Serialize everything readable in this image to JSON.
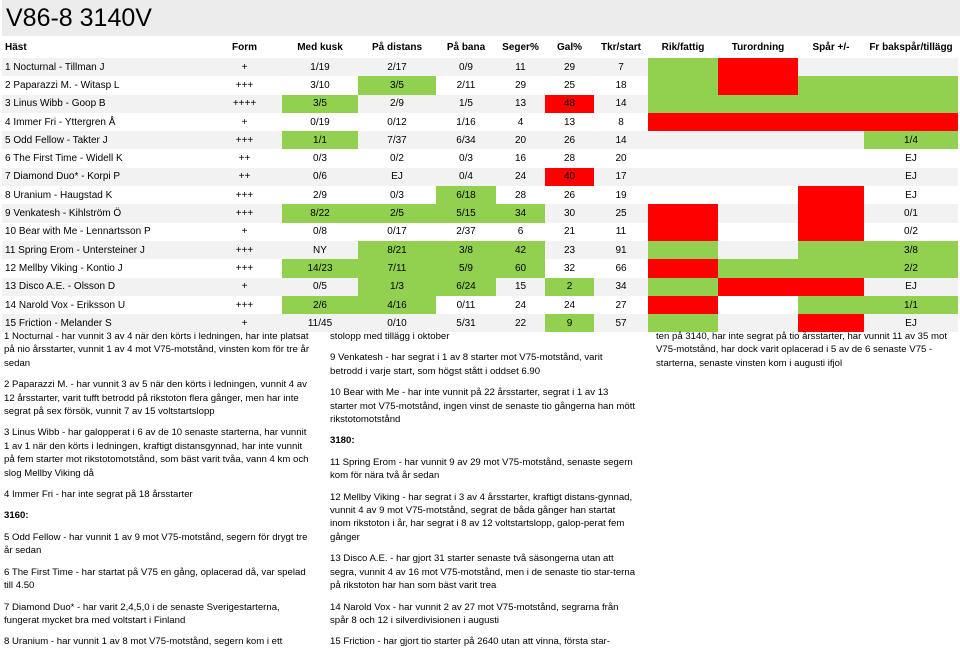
{
  "title": "V86-8    3140V",
  "headers": [
    "Häst",
    "Form",
    "Med kusk",
    "På distans",
    "På bana",
    "Seger%",
    "Gal%",
    "Tkr/start",
    "Rik/fattig",
    "Turordning",
    "Spår +/-",
    "Fr bakspår/tillägg"
  ],
  "rows": [
    {
      "cells": [
        "1 Nocturnal - Tillman J",
        "+",
        "1/19",
        "2/17",
        "0/9",
        "11",
        "29",
        "7",
        "",
        "",
        "",
        ""
      ],
      "hl": [
        null,
        null,
        null,
        null,
        null,
        null,
        null,
        null,
        "g",
        "r",
        "",
        ""
      ]
    },
    {
      "cells": [
        "2 Paparazzi M. - Witasp L",
        "+++",
        "3/10",
        "3/5",
        "2/11",
        "29",
        "25",
        "18",
        "",
        "",
        "",
        ""
      ],
      "hl": [
        null,
        null,
        null,
        "g",
        null,
        null,
        null,
        null,
        "g",
        "r",
        "g",
        "g"
      ]
    },
    {
      "cells": [
        "3 Linus Wibb - Goop B",
        "++++",
        "3/5",
        "2/9",
        "1/5",
        "13",
        "48",
        "14",
        "",
        "",
        "",
        ""
      ],
      "hl": [
        null,
        null,
        "g",
        null,
        null,
        null,
        "r",
        null,
        "g",
        "g",
        "g",
        "g"
      ]
    },
    {
      "cells": [
        "4 Immer Fri - Yttergren Å",
        "+",
        "0/19",
        "0/12",
        "1/16",
        "4",
        "13",
        "8",
        "",
        "",
        "",
        ""
      ],
      "hl": [
        null,
        null,
        null,
        null,
        null,
        null,
        null,
        null,
        "r",
        "r",
        "r",
        "r"
      ]
    },
    {
      "cells": [
        "5 Odd Fellow - Takter J",
        "+++",
        "1/1",
        "7/37",
        "6/34",
        "20",
        "26",
        "14",
        "",
        "",
        "",
        "1/4"
      ],
      "hl": [
        null,
        null,
        "g",
        null,
        null,
        null,
        null,
        null,
        null,
        null,
        null,
        "g"
      ]
    },
    {
      "cells": [
        "6 The First Time - Widell K",
        "++",
        "0/3",
        "0/2",
        "0/3",
        "16",
        "28",
        "20",
        "",
        "",
        "",
        "EJ"
      ],
      "hl": [
        null,
        null,
        null,
        null,
        null,
        null,
        null,
        null,
        null,
        null,
        null,
        null
      ]
    },
    {
      "cells": [
        "7 Diamond Duo* - Korpi P",
        "++",
        "0/6",
        "EJ",
        "0/4",
        "24",
        "40",
        "17",
        "",
        "",
        "",
        "EJ"
      ],
      "hl": [
        null,
        null,
        null,
        null,
        null,
        null,
        "r",
        null,
        null,
        null,
        null,
        null
      ]
    },
    {
      "cells": [
        "8 Uranium - Haugstad K",
        "+++",
        "2/9",
        "0/3",
        "6/18",
        "28",
        "26",
        "19",
        "",
        "",
        "",
        "EJ"
      ],
      "hl": [
        null,
        null,
        null,
        null,
        "g",
        null,
        null,
        null,
        null,
        null,
        "r",
        null
      ]
    },
    {
      "cells": [
        "9 Venkatesh - Kihlström Ö",
        "+++",
        "8/22",
        "2/5",
        "5/15",
        "34",
        "30",
        "25",
        "",
        "",
        "",
        "0/1"
      ],
      "hl": [
        null,
        null,
        "g",
        "g",
        "g",
        "g",
        null,
        null,
        "r",
        null,
        "r",
        null
      ]
    },
    {
      "cells": [
        "10 Bear with Me - Lennartsson P",
        "+",
        "0/8",
        "0/17",
        "2/37",
        "6",
        "21",
        "11",
        "",
        "",
        "",
        "0/2"
      ],
      "hl": [
        null,
        null,
        null,
        null,
        null,
        null,
        null,
        null,
        "r",
        null,
        "r",
        null
      ]
    },
    {
      "cells": [
        "11 Spring Erom - Untersteiner J",
        "+++",
        "NY",
        "8/21",
        "3/8",
        "42",
        "23",
        "91",
        "",
        "",
        "",
        "3/8"
      ],
      "hl": [
        null,
        null,
        null,
        "g",
        "g",
        "g",
        null,
        null,
        "g",
        null,
        "g",
        "g"
      ]
    },
    {
      "cells": [
        "12 Mellby Viking - Kontio J",
        "+++",
        "14/23",
        "7/11",
        "5/9",
        "60",
        "32",
        "66",
        "",
        "",
        "",
        "2/2"
      ],
      "hl": [
        null,
        null,
        "g",
        "g",
        "g",
        "g",
        null,
        null,
        "r",
        "g",
        "g",
        "g"
      ]
    },
    {
      "cells": [
        "13 Disco A.E. - Olsson D",
        "+",
        "0/5",
        "1/3",
        "6/24",
        "15",
        "2",
        "34",
        "",
        "",
        "",
        "EJ"
      ],
      "hl": [
        null,
        null,
        null,
        "g",
        "g",
        null,
        "g",
        null,
        "g",
        "r",
        "r",
        null
      ]
    },
    {
      "cells": [
        "14 Narold Vox - Eriksson U",
        "+++",
        "2/6",
        "4/16",
        "0/11",
        "24",
        "24",
        "27",
        "",
        "",
        "",
        "1/1"
      ],
      "hl": [
        null,
        null,
        "g",
        "g",
        null,
        null,
        null,
        null,
        "r",
        null,
        "g",
        "g"
      ]
    },
    {
      "cells": [
        "15 Friction - Melander S",
        "+",
        "11/45",
        "0/10",
        "5/31",
        "22",
        "9",
        "57",
        "",
        "",
        "",
        "EJ"
      ],
      "hl": [
        null,
        null,
        null,
        null,
        null,
        null,
        "g",
        null,
        "g",
        null,
        "r",
        null
      ]
    }
  ],
  "notes": {
    "col1": [
      {
        "t": "1 Nocturnal - har vunnit 3 av 4 när den körts i ledningen, har inte platsat på nio årsstarter, vunnit 1 av 4 mot V75-motstånd, vinsten kom för tre år sedan"
      },
      {
        "t": "2 Paparazzi M. - har vunnit 3 av 5 när den körts i ledningen, vunnit 4 av 12 årsstarter, varit tufft betrodd på rikstoton flera gånger, men har inte segrat på sex försök, vunnit 7 av 15 voltstartslopp"
      },
      {
        "t": "3 Linus Wibb - har galopperat i 6 av de 10 senaste starterna, har vunnit 1 av 1 när den körts i ledningen, kraftigt distansgynnad, har inte vunnit på fem starter mot rikstotomotstånd, som bäst varit tvåa, vann 4 km och slog Mellby Viking då"
      },
      {
        "t": "4 Immer Fri - har inte segrat på 18 årsstarter"
      },
      {
        "t": "3160:",
        "h": true
      },
      {
        "t": "5 Odd Fellow - har vunnit 1 av 9 mot V75-motstånd, segern för drygt tre år sedan"
      },
      {
        "t": "6 The First Time - har startat på V75 en gång, oplacerad då, var spelad till 4.50"
      },
      {
        "t": "7 Diamond Duo* - har varit 2,4,5,0 i de senaste Sverigestarterna, fungerat mycket bra med voltstart i Finland"
      },
      {
        "t": "8 Uranium - har vunnit 1 av 8 mot V75-motstånd, segern kom i ett"
      }
    ],
    "col2": [
      {
        "t": "stolopp med tillägg i oktober"
      },
      {
        "t": "9 Venkatesh - har segrat i 1 av 8 starter mot V75-motstånd, varit betrodd i varje start, som högst stått i oddset 6.90"
      },
      {
        "t": "10 Bear with Me - har inte vunnit på 22 årsstarter, segrat i 1 av 13 starter mot V75-motstånd, ingen vinst de senaste tio gångerna han mött rikstotomotstånd"
      },
      {
        "t": "3180:",
        "h": true
      },
      {
        "t": "11 Spring Erom - har vunnit 9 av 29 mot V75-motstånd, senaste segern kom för nära två år sedan"
      },
      {
        "t": "12 Mellby Viking - har segrat i 3 av 4 årsstarter, kraftigt distans-gynnad, vunnit 4 av 9 mot V75-motstånd, segrat de båda gånger han startat inom rikstoton i år, har segrat i 8 av 12 voltstartslopp, galop-perat fem gånger"
      },
      {
        "t": "13 Disco A.E. - har gjort 31 starter senaste två säsongerna utan att segra, vunnit 4 av 16 mot V75-motstånd, men i de senaste tio star-terna på rikstoton har han som bäst varit trea"
      },
      {
        "t": "14 Narold Vox - har vunnit 2 av 27 mot V75-motstånd, segrarna från spår 8 och 12 i silverdivisionen i augusti"
      },
      {
        "t": "15 Friction - har gjort tio starter på 2640 utan att vinna, första star-"
      }
    ],
    "col3": [
      {
        "t": "ten på 3140, har inte segrat på tio årsstarter, har vunnit 11 av 35 mot V75-motstånd, har dock varit oplacerad i 5 av de 6 senaste V75 -starterna, senaste vinsten kom i augusti ifjol"
      }
    ]
  }
}
